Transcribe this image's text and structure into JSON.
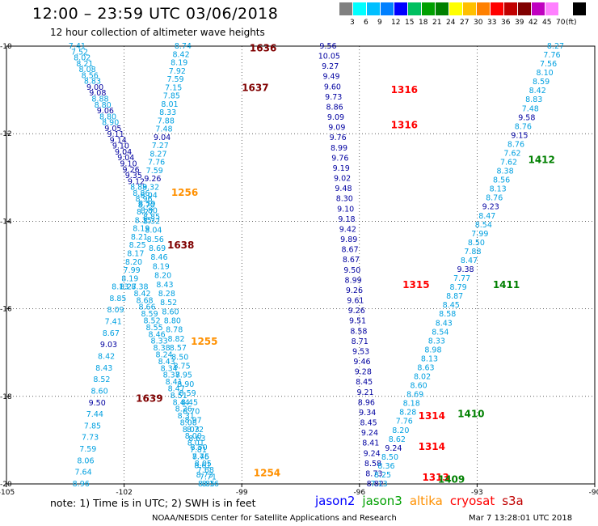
{
  "header": {
    "title": "12:00 – 23:59 UTC 03/06/2018",
    "subtitle": "12 hour collection of altimeter wave heights"
  },
  "colorbar": {
    "unit": "(ft)",
    "colors": [
      "#808080",
      "#00ffff",
      "#00bfff",
      "#0080ff",
      "#0000ff",
      "#00c060",
      "#00a000",
      "#008000",
      "#ffff00",
      "#ffc000",
      "#ff8000",
      "#ff0000",
      "#c00000",
      "#800000",
      "#c000c0",
      "#ff80ff",
      "#ffffff",
      "#000000"
    ],
    "labels": [
      "3",
      "6",
      "9",
      "12",
      "15",
      "18",
      "21",
      "24",
      "27",
      "30",
      "33",
      "36",
      "39",
      "42",
      "45",
      "70"
    ]
  },
  "axes": {
    "x_ticks": [
      "-105",
      "-102",
      "-99",
      "-96",
      "-93",
      "-90"
    ],
    "y_ticks": [
      "-10",
      "-12",
      "-14",
      "-16",
      "-18",
      "-20"
    ],
    "x_range": [
      -105,
      -90
    ],
    "y_range": [
      -20,
      -10
    ]
  },
  "chart_data": {
    "type": "scatter",
    "tracks": [
      {
        "satellite": "jason3",
        "values": [
          "7.41",
          "7.52",
          "8.02",
          "8.21",
          "8.08",
          "8.56",
          "8.83",
          "9.00",
          "9.08",
          "8.88",
          "8.80",
          "9.06",
          "8.80",
          "8.90",
          "9.05",
          "9.11",
          "9.14",
          "9.10",
          "9.04",
          "9.04",
          "9.10",
          "9.26",
          "9.35",
          "9.12",
          "8.89",
          "8.86",
          "8.96",
          "8.70",
          "8.80",
          "8.85"
        ],
        "lon_start": -103.2,
        "lat_start": -10.0,
        "lon_end": -101.3,
        "lat_end": -13.9
      },
      {
        "satellite": "jason3",
        "values": [
          "8.32",
          "8.04",
          "8.56",
          "8.69",
          "8.46",
          "8.19",
          "8.20",
          "8.43",
          "8.28",
          "8.52",
          "8.60",
          "8.80",
          "8.78",
          "8.82",
          "8.57",
          "8.50",
          "8.75",
          "8.95",
          "8.90",
          "8.59",
          "8.45",
          "8.70",
          "8.97",
          "8.72",
          "8.63",
          "8.50",
          "8.45",
          "8.61",
          "8.73",
          "8.85"
        ],
        "lon_start": -101.3,
        "lat_start": -14.0,
        "lon_end": -99.9,
        "lat_end": -20.0
      },
      {
        "satellite": "jason3",
        "values": [
          "8.74",
          "8.42",
          "8.19",
          "7.92",
          "7.59",
          "7.15",
          "7.85",
          "8.01",
          "8.33",
          "7.88",
          "7.48",
          "9.04",
          "7.27",
          "8.27",
          "7.76",
          "7.59",
          "9.26",
          "8.32",
          "8.04",
          "8.59",
          "8.27",
          "8.35",
          "8.19",
          "8.21",
          "8.25",
          "8.17",
          "8.20",
          "7.99",
          "8.19",
          "8.27"
        ],
        "lon_start": -100.5,
        "lat_start": -10.0,
        "lon_end": -101.9,
        "lat_end": -15.5
      },
      {
        "satellite": "jason3",
        "values": [
          "8.38",
          "8.42",
          "8.68",
          "8.66",
          "8.59",
          "8.52",
          "8.55",
          "8.46",
          "8.33",
          "8.38",
          "8.24",
          "8.43",
          "8.34",
          "8.37",
          "8.41",
          "8.47",
          "8.51",
          "8.44",
          "8.26",
          "8.31",
          "8.08",
          "8.03",
          "8.00",
          "8.01",
          "7.81",
          "7.76",
          "8.05",
          "7.68",
          "7.71",
          "8.16"
        ],
        "lon_start": -101.6,
        "lat_start": -15.5,
        "lon_end": -99.8,
        "lat_end": -20.0
      },
      {
        "satellite": "jason3",
        "values": [
          "8.13",
          "8.85",
          "8.09",
          "7.41",
          "8.67",
          "9.03",
          "8.42",
          "8.43",
          "8.52",
          "8.60",
          "9.50",
          "7.44",
          "7.85",
          "7.73",
          "7.59",
          "8.06",
          "7.64",
          "8.96"
        ],
        "lon_start": -102.1,
        "lat_start": -15.5,
        "lon_end": -103.1,
        "lat_end": -20.0
      },
      {
        "satellite": "jason2",
        "values": [
          "9.56",
          "10.05",
          "9.27",
          "9.49",
          "9.60",
          "9.73",
          "8.86",
          "9.09",
          "9.09",
          "9.76",
          "8.99",
          "9.76",
          "9.19",
          "9.02",
          "9.48",
          "8.30",
          "9.10",
          "9.18",
          "9.42",
          "9.89",
          "8.67",
          "8.67",
          "9.50",
          "8.99",
          "9.26",
          "9.61",
          "9.26",
          "9.51",
          "8.58",
          "8.71",
          "9.53",
          "9.46",
          "9.28",
          "8.45",
          "9.21",
          "8.96",
          "9.34",
          "8.45",
          "9.24",
          "8.41",
          "9.24",
          "8.58",
          "8.73",
          "8.82"
        ],
        "lon_start": -96.8,
        "lat_start": -10.0,
        "lon_end": -95.6,
        "lat_end": -20.0
      },
      {
        "satellite": "jason3",
        "values": [
          "8.27",
          "7.76",
          "7.56",
          "8.10",
          "8.59",
          "8.42",
          "8.83",
          "7.48",
          "9.58",
          "8.76",
          "9.15",
          "8.76",
          "7.62",
          "7.62",
          "8.38",
          "8.56",
          "8.13",
          "8.76",
          "9.23",
          "8.47",
          "8.54",
          "7.99",
          "8.50",
          "7.88",
          "8.47",
          "9.38",
          "7.77",
          "8.79",
          "8.87",
          "8.45",
          "8.58",
          "8.43",
          "8.54",
          "8.33",
          "8.98",
          "8.13",
          "8.63",
          "8.02",
          "8.60",
          "8.69",
          "8.18",
          "8.28",
          "7.76",
          "8.20",
          "8.62",
          "9.24",
          "8.50",
          "8.36",
          "8.25",
          "7.13"
        ],
        "lon_start": -91.0,
        "lat_start": -10.0,
        "lon_end": -95.5,
        "lat_end": -20.0
      }
    ],
    "time_labels": [
      {
        "text": "1636",
        "color": "#800000",
        "lon": -98.8,
        "lat": -10.05
      },
      {
        "text": "1637",
        "color": "#800000",
        "lon": -99.0,
        "lat": -10.95
      },
      {
        "text": "1638",
        "color": "#800000",
        "lon": -100.9,
        "lat": -14.55
      },
      {
        "text": "1639",
        "color": "#800000",
        "lon": -101.7,
        "lat": -18.05
      },
      {
        "text": "1256",
        "color": "#ff9000",
        "lon": -100.8,
        "lat": -13.35
      },
      {
        "text": "1255",
        "color": "#ff9000",
        "lon": -100.3,
        "lat": -16.75
      },
      {
        "text": "1254",
        "color": "#ff9000",
        "lon": -98.7,
        "lat": -19.75
      },
      {
        "text": "1316",
        "color": "#ff0000",
        "lon": -95.2,
        "lat": -11.0
      },
      {
        "text": "1316",
        "color": "#ff0000",
        "lon": -95.2,
        "lat": -11.8
      },
      {
        "text": "1315",
        "color": "#ff0000",
        "lon": -94.9,
        "lat": -15.45
      },
      {
        "text": "1314",
        "color": "#ff0000",
        "lon": -94.5,
        "lat": -18.45
      },
      {
        "text": "1314",
        "color": "#ff0000",
        "lon": -94.5,
        "lat": -19.15
      },
      {
        "text": "1313",
        "color": "#ff0000",
        "lon": -94.4,
        "lat": -19.85
      },
      {
        "text": "1412",
        "color": "#008000",
        "lon": -91.7,
        "lat": -12.6
      },
      {
        "text": "1411",
        "color": "#008000",
        "lon": -92.6,
        "lat": -15.45
      },
      {
        "text": "1410",
        "color": "#008000",
        "lon": -93.5,
        "lat": -18.4
      },
      {
        "text": "1409",
        "color": "#008000",
        "lon": -94.0,
        "lat": -19.9
      }
    ],
    "satellite_colors": {
      "jason2": "#0000a0",
      "jason3": "#00a0e0"
    }
  },
  "note": "note:  1) Time is in UTC;  2) SWH is in feet",
  "legend": [
    {
      "label": "jason2",
      "color": "#0000ff"
    },
    {
      "label": "jason3",
      "color": "#00a000"
    },
    {
      "label": "altika",
      "color": "#ff9000"
    },
    {
      "label": "cryosat",
      "color": "#ff0000"
    },
    {
      "label": "s3a",
      "color": "#c00000"
    }
  ],
  "footer": {
    "credit": "NOAA/NESDIS Center for Satellite Applications and Research",
    "timestamp": "Mar  7 13:28:01 UTC 2018"
  }
}
